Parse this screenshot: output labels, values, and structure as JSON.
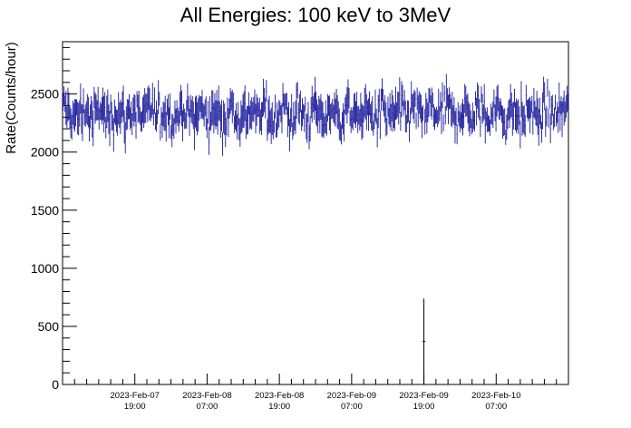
{
  "chart_data": {
    "type": "scatter",
    "title": "All Energies:  100 keV to 3MeV",
    "ylabel": "Rate(Counts/hour)",
    "xlabel": "",
    "ylim": [
      0,
      2950
    ],
    "yticks": [
      0,
      500,
      1000,
      1500,
      2000,
      2500
    ],
    "ytick_labels": [
      "0",
      "500",
      "1000",
      "1500",
      "2000",
      "2500"
    ],
    "xlim": [
      "2023-02-07 07:00",
      "2023-02-10 19:00"
    ],
    "xticks": [
      {
        "date": "2023-Feb-07",
        "time": "19:00"
      },
      {
        "date": "2023-Feb-08",
        "time": "07:00"
      },
      {
        "date": "2023-Feb-08",
        "time": "19:00"
      },
      {
        "date": "2023-Feb-09",
        "time": "07:00"
      },
      {
        "date": "2023-Feb-09",
        "time": "19:00"
      },
      {
        "date": "2023-Feb-10",
        "time": "07:00"
      }
    ],
    "series_color": "#1a1a9a",
    "mean_rate": 2330,
    "noise_range": [
      1950,
      2800
    ],
    "anomaly": {
      "time": "2023-02-09 19:00",
      "value": 370,
      "error_low": 0,
      "error_high": 740
    },
    "grid": false,
    "legend": "none"
  }
}
